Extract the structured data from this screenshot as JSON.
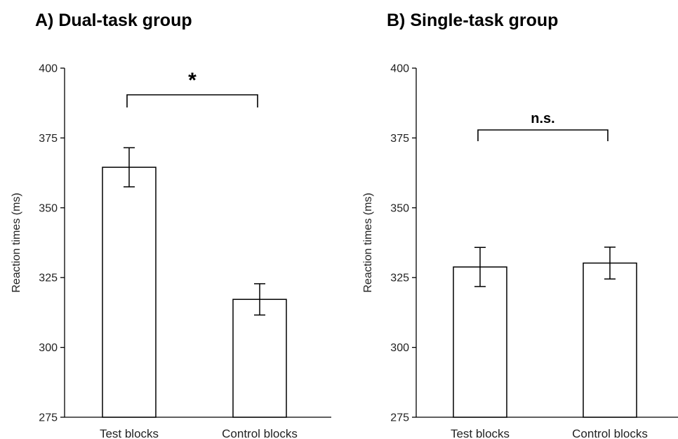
{
  "chart_data": [
    {
      "type": "bar",
      "title": "A) Dual-task group",
      "ylabel": "Reaction times (ms)",
      "ylim": [
        275,
        400
      ],
      "yticks": [
        275,
        300,
        325,
        350,
        375,
        400
      ],
      "categories": [
        "Test blocks",
        "Control blocks"
      ],
      "values": [
        364.5,
        317.2
      ],
      "errors": [
        7.0,
        5.6
      ],
      "significance": "*"
    },
    {
      "type": "bar",
      "title": "B) Single-task group",
      "ylabel": "Reaction times (ms)",
      "ylim": [
        275,
        400
      ],
      "yticks": [
        275,
        300,
        325,
        350,
        375,
        400
      ],
      "categories": [
        "Test blocks",
        "Control blocks"
      ],
      "values": [
        328.8,
        330.2
      ],
      "errors": [
        7.0,
        5.7
      ],
      "significance": "n.s."
    }
  ]
}
